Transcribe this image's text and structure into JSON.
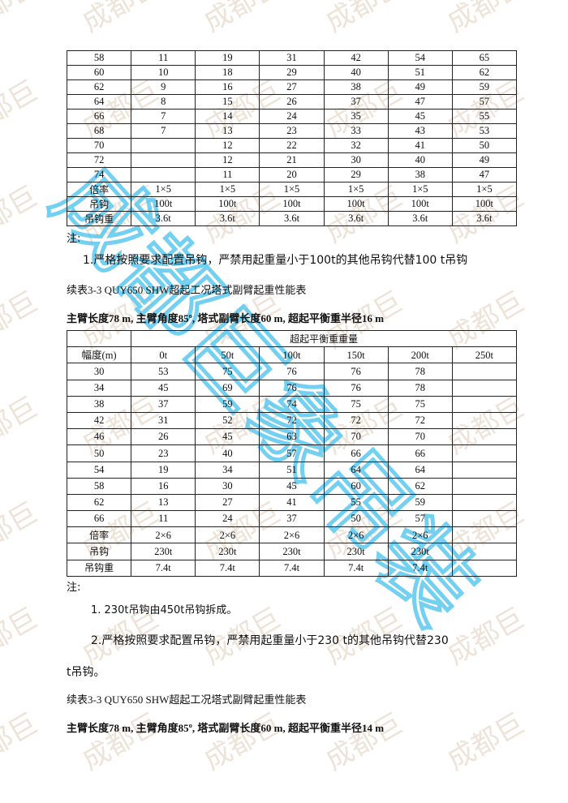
{
  "table1": {
    "rows": [
      [
        "58",
        "11",
        "19",
        "31",
        "42",
        "54",
        "65"
      ],
      [
        "60",
        "10",
        "18",
        "29",
        "40",
        "51",
        "62"
      ],
      [
        "62",
        "9",
        "16",
        "27",
        "38",
        "49",
        "59"
      ],
      [
        "64",
        "8",
        "15",
        "26",
        "37",
        "47",
        "57"
      ],
      [
        "66",
        "7",
        "14",
        "24",
        "35",
        "45",
        "55"
      ],
      [
        "68",
        "7",
        "13",
        "23",
        "33",
        "43",
        "53"
      ],
      [
        "70",
        "",
        "12",
        "22",
        "32",
        "41",
        "50"
      ],
      [
        "72",
        "",
        "12",
        "21",
        "30",
        "40",
        "49"
      ],
      [
        "74",
        "",
        "11",
        "20",
        "29",
        "38",
        "47"
      ],
      [
        "倍率",
        "1×5",
        "1×5",
        "1×5",
        "1×5",
        "1×5",
        "1×5"
      ],
      [
        "吊钩",
        "100t",
        "100t",
        "100t",
        "100t",
        "100t",
        "100t"
      ],
      [
        "吊钩重",
        "3.6t",
        "3.6t",
        "3.6t",
        "3.6t",
        "3.6t",
        "3.6t"
      ]
    ]
  },
  "note1": {
    "label": "注:",
    "item1": "1.严格按照要求配置吊钩，严禁用起重量小于100t的其他吊钩代替100 t吊钩"
  },
  "section2": {
    "title": "续表3-3 QUY650 SHW超起工况塔式副臂起重性能表",
    "subtitle": "主臂长度78 m, 主臂角度85º, 塔式副臂长度60 m, 超起平衡重半径16 m"
  },
  "table2": {
    "group_header": "超起平衡重重量",
    "headers": [
      "幅度(m)",
      "0t",
      "50t",
      "100t",
      "150t",
      "200t",
      "250t"
    ],
    "rows": [
      [
        "30",
        "53",
        "75",
        "76",
        "76",
        "78",
        ""
      ],
      [
        "34",
        "45",
        "69",
        "76",
        "76",
        "78",
        ""
      ],
      [
        "38",
        "37",
        "59",
        "74",
        "75",
        "75",
        ""
      ],
      [
        "42",
        "31",
        "52",
        "72",
        "72",
        "72",
        ""
      ],
      [
        "46",
        "26",
        "45",
        "63",
        "70",
        "70",
        ""
      ],
      [
        "50",
        "23",
        "40",
        "57",
        "66",
        "66",
        ""
      ],
      [
        "54",
        "19",
        "34",
        "51",
        "64",
        "64",
        ""
      ],
      [
        "58",
        "16",
        "30",
        "45",
        "60",
        "62",
        ""
      ],
      [
        "62",
        "13",
        "27",
        "41",
        "55",
        "59",
        ""
      ],
      [
        "66",
        "11",
        "24",
        "37",
        "50",
        "57",
        ""
      ],
      [
        "倍率",
        "2×6",
        "2×6",
        "2×6",
        "2×6",
        "2×6",
        ""
      ],
      [
        "吊钩",
        "230t",
        "230t",
        "230t",
        "230t",
        "230t",
        ""
      ],
      [
        "吊钩重",
        "7.4t",
        "7.4t",
        "7.4t",
        "7.4t",
        "7.4t",
        ""
      ]
    ]
  },
  "note2": {
    "label": "注:",
    "item1": "1. 230t吊钩由450t吊钩拆成。",
    "item2": "2.严格按照要求配置吊钩，严禁用起重量小于230 t的其他吊钩代替230",
    "item2_cont": "t吊钩。"
  },
  "section3": {
    "title": "续表3-3 QUY650 SHW超起工况塔式副臂起重性能表",
    "subtitle": "主臂长度78 m, 主臂角度85º, 塔式副臂长度60 m, 超起平衡重半径14 m"
  },
  "watermark": {
    "text": "成都巨象吊装",
    "color": "#5bc8ee",
    "bg_color": "#e8d8c8"
  }
}
